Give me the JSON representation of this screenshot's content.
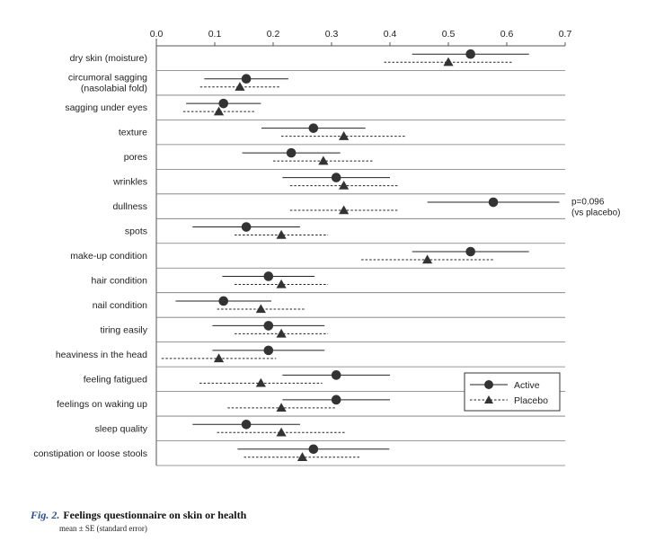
{
  "chart_data": {
    "type": "dot-errorbar",
    "orientation": "horizontal",
    "xlim": [
      0,
      0.7
    ],
    "ticks": [
      "0.0",
      "0.1",
      "0.2",
      "0.3",
      "0.4",
      "0.5",
      "0.6",
      "0.7"
    ],
    "tick_values": [
      0,
      0.1,
      0.2,
      0.3,
      0.4,
      0.5,
      0.6,
      0.7
    ],
    "categories": [
      [
        "dry skin (moisture)"
      ],
      [
        "circumoral sagging",
        "(nasolabial fold)"
      ],
      [
        "sagging under eyes"
      ],
      [
        "texture"
      ],
      [
        "pores"
      ],
      [
        "wrinkles"
      ],
      [
        "dullness"
      ],
      [
        "spots"
      ],
      [
        "make-up condition"
      ],
      [
        "hair condition"
      ],
      [
        "nail condition"
      ],
      [
        "tiring easily"
      ],
      [
        "heaviness in the head"
      ],
      [
        "feeling fatigued"
      ],
      [
        "feelings on waking up"
      ],
      [
        "sleep quality"
      ],
      [
        "constipation or loose stools"
      ]
    ],
    "series": [
      {
        "name": "Active",
        "marker": "circle",
        "line": "solid",
        "mean": [
          0.538,
          0.154,
          0.115,
          0.269,
          0.231,
          0.308,
          0.577,
          0.154,
          0.538,
          0.192,
          0.115,
          0.192,
          0.192,
          0.308,
          0.308,
          0.154,
          0.269
        ],
        "se": [
          0.1,
          0.072,
          0.064,
          0.089,
          0.084,
          0.092,
          0.113,
          0.092,
          0.1,
          0.079,
          0.082,
          0.096,
          0.096,
          0.092,
          0.092,
          0.092,
          0.13
        ]
      },
      {
        "name": "Placebo",
        "marker": "triangle",
        "line": "dashed",
        "mean": [
          0.5,
          0.143,
          0.107,
          0.321,
          0.286,
          0.321,
          0.321,
          0.214,
          0.464,
          0.214,
          0.179,
          0.214,
          0.107,
          0.179,
          0.214,
          0.214,
          0.25
        ],
        "se": [
          0.11,
          0.068,
          0.061,
          0.107,
          0.086,
          0.092,
          0.092,
          0.08,
          0.113,
          0.08,
          0.075,
          0.08,
          0.098,
          0.105,
          0.092,
          0.11,
          0.1
        ]
      }
    ],
    "annotations": [
      {
        "row": 6,
        "lines": [
          "p=0.096",
          "(vs placebo)"
        ]
      }
    ],
    "legend": {
      "position": "bottom-right",
      "items": [
        "Active",
        "Placebo"
      ]
    }
  },
  "caption": {
    "figure_label": "Fig. 2.",
    "title": "Feelings questionnaire on skin or health",
    "subtitle": "mean ± SE (standard error)"
  }
}
